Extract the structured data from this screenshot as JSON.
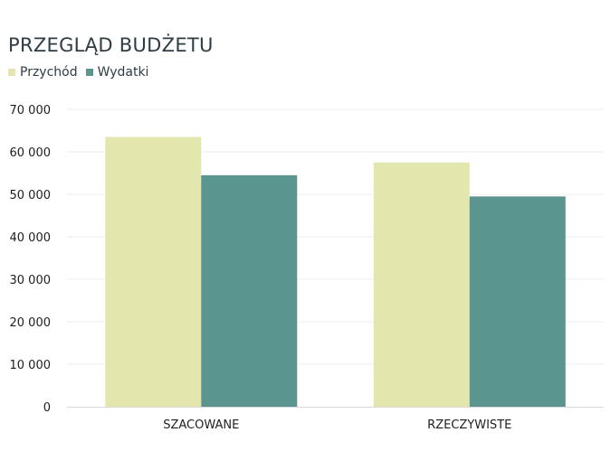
{
  "chart_data": {
    "type": "bar",
    "title": "PRZEGLĄD BUDŻETU",
    "categories": [
      "SZACOWANE",
      "RZECZYWISTE"
    ],
    "series": [
      {
        "name": "Przychód",
        "color": "#e3e7ad",
        "values": [
          63500,
          57500
        ]
      },
      {
        "name": "Wydatki",
        "color": "#5a9590",
        "values": [
          54500,
          49500
        ]
      }
    ],
    "ylim": [
      0,
      70000
    ],
    "y_ticks": [
      0,
      10000,
      20000,
      30000,
      40000,
      50000,
      60000,
      70000
    ],
    "y_tick_labels": [
      "0",
      "10 000",
      "20 000",
      "30 000",
      "40 000",
      "50 000",
      "60 000",
      "70 000"
    ],
    "grid": true,
    "legend_position": "top-left"
  }
}
